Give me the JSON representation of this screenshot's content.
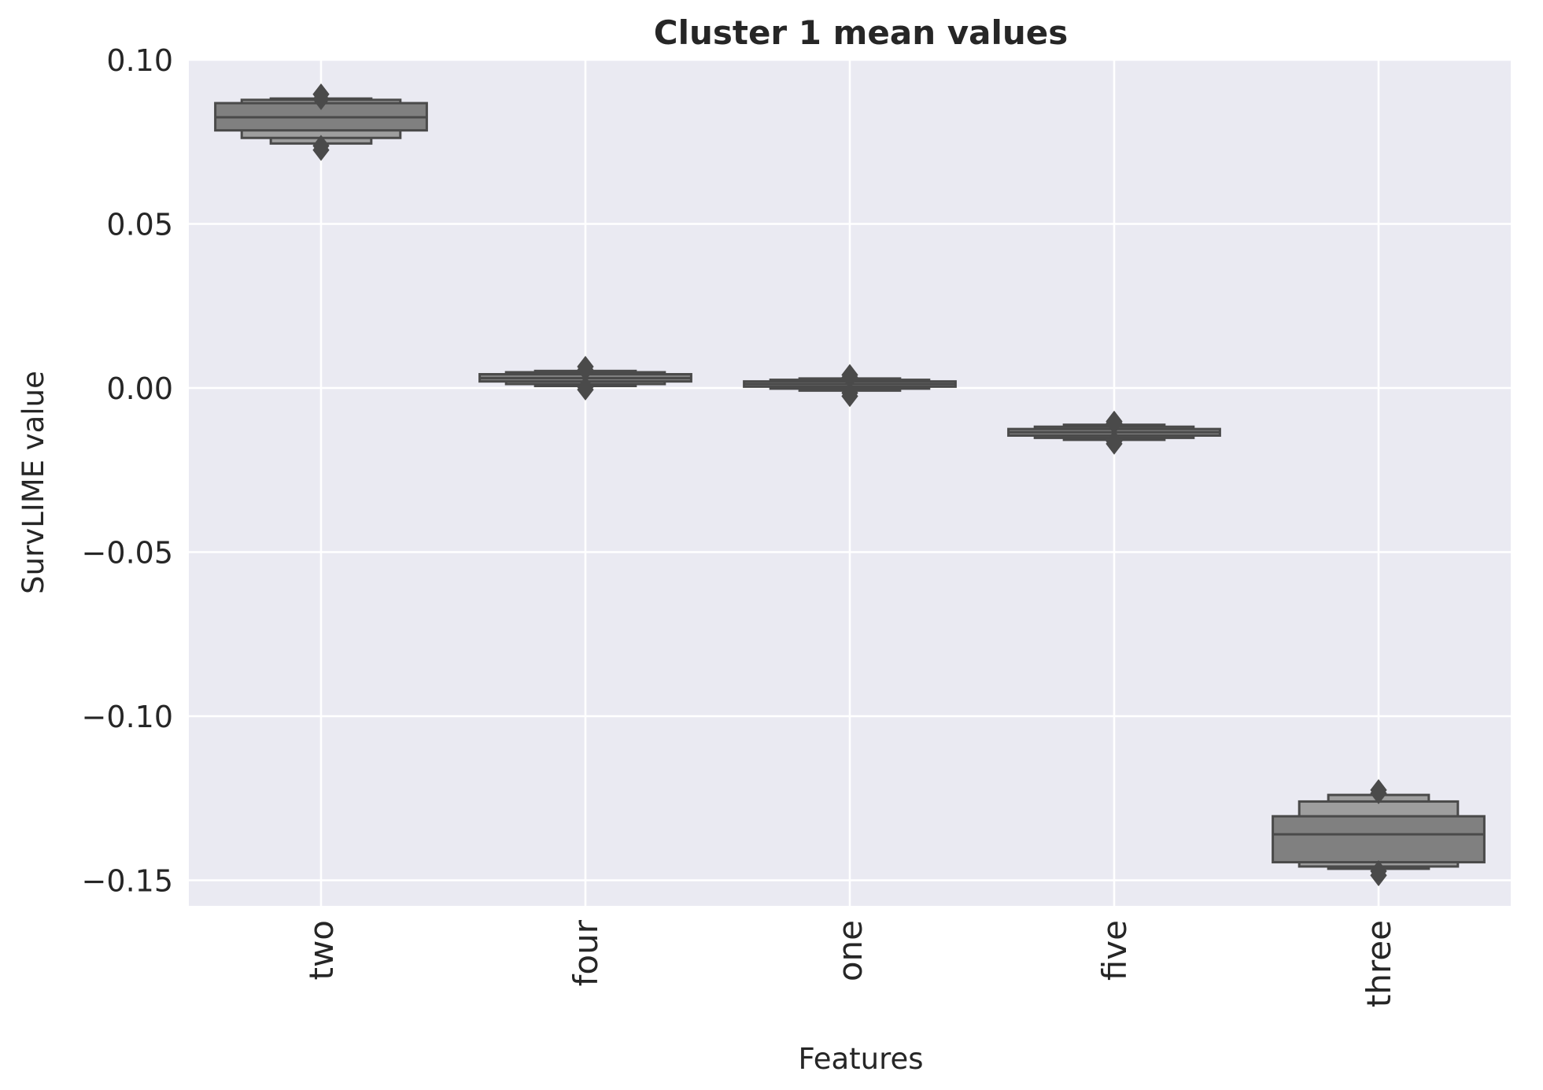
{
  "chart_data": {
    "type": "boxen",
    "title": "Cluster 1 mean values",
    "xlabel": "Features",
    "ylabel": "SurvLIME value",
    "ylim": [
      -0.159,
      0.1
    ],
    "yticks": [
      0.1,
      0.05,
      0.0,
      -0.05,
      -0.1,
      -0.15
    ],
    "ytick_labels": [
      "0.10",
      "0.05",
      "0.00",
      "−0.05",
      "−0.10",
      "−0.15"
    ],
    "categories": [
      "two",
      "four",
      "one",
      "five",
      "three"
    ],
    "grid": true,
    "legend": "none",
    "colors": {
      "background": "#eaeaf2",
      "grid": "#ffffff",
      "box_fill": "#808080",
      "box_fill_outer": "#9e9e9e",
      "box_edge": "#4a4a4a",
      "outlier": "#4a4a4a",
      "text": "#262626"
    },
    "series": [
      {
        "category": "two",
        "median": 0.0825,
        "levels": [
          [
            0.0785,
            0.0868
          ],
          [
            0.0762,
            0.0878
          ],
          [
            0.0745,
            0.0882
          ]
        ],
        "outliers_high": [
          0.0895,
          0.088
        ],
        "outliers_low": [
          0.0725,
          0.0738
        ]
      },
      {
        "category": "four",
        "median": 0.003,
        "levels": [
          [
            0.002,
            0.0042
          ],
          [
            0.0012,
            0.0048
          ],
          [
            0.0006,
            0.0052
          ]
        ],
        "outliers_high": [
          0.0065,
          0.0055
        ],
        "outliers_low": [
          -0.0005,
          0.0003
        ]
      },
      {
        "category": "one",
        "median": 0.0012,
        "levels": [
          [
            0.0004,
            0.002
          ],
          [
            -0.0002,
            0.0025
          ],
          [
            -0.0008,
            0.0029
          ]
        ],
        "outliers_high": [
          0.004,
          0.0032
        ],
        "outliers_low": [
          -0.0025,
          -0.0015
        ]
      },
      {
        "category": "five",
        "median": -0.0135,
        "levels": [
          [
            -0.0145,
            -0.0125
          ],
          [
            -0.0152,
            -0.0118
          ],
          [
            -0.0158,
            -0.0112
          ]
        ],
        "outliers_high": [
          -0.0102,
          -0.0108
        ],
        "outliers_low": [
          -0.017,
          -0.0162
        ]
      },
      {
        "category": "three",
        "median": -0.136,
        "levels": [
          [
            -0.1445,
            -0.1305
          ],
          [
            -0.1458,
            -0.126
          ],
          [
            -0.1465,
            -0.124
          ]
        ],
        "outliers_high": [
          -0.1225,
          -0.1235
        ],
        "outliers_low": [
          -0.1485,
          -0.1472
        ]
      }
    ]
  }
}
